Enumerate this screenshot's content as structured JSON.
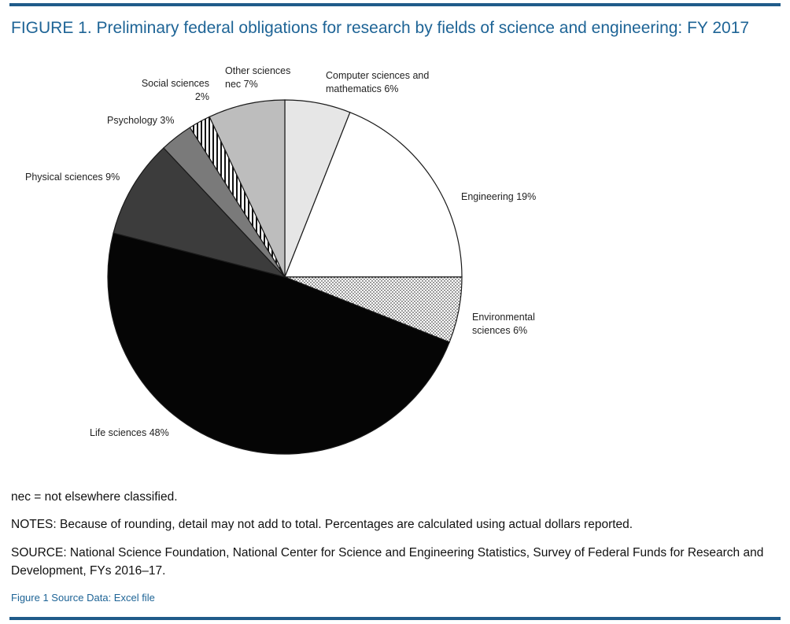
{
  "title": "FIGURE 1. Preliminary federal obligations for research by fields of science and engineering: FY 2017",
  "chart_data": {
    "type": "pie",
    "title": "FIGURE 1. Preliminary federal obligations for research by fields of science and engineering: FY 2017",
    "slices": [
      {
        "label": "Computer sciences and mathematics 6%",
        "label_lines": [
          "Computer sciences and",
          "mathematics 6%"
        ],
        "value": 6,
        "fill": "#e6e6e6"
      },
      {
        "label": "Engineering 19%",
        "label_lines": [
          "Engineering 19%"
        ],
        "value": 19,
        "fill": "#ffffff"
      },
      {
        "label": "Environmental sciences 6%",
        "label_lines": [
          "Environmental",
          "sciences 6%"
        ],
        "value": 6,
        "fill": "pattern-dots"
      },
      {
        "label": "Life sciences 48%",
        "label_lines": [
          "Life sciences 48%"
        ],
        "value": 48,
        "fill": "#050505"
      },
      {
        "label": "Physical sciences 9%",
        "label_lines": [
          "Physical sciences 9%"
        ],
        "value": 9,
        "fill": "#3c3c3c"
      },
      {
        "label": "Psychology 3%",
        "label_lines": [
          "Psychology 3%"
        ],
        "value": 3,
        "fill": "#7a7a7a"
      },
      {
        "label": "Social sciences 2%",
        "label_lines": [
          "Social sciences",
          "2%"
        ],
        "value": 2,
        "fill": "pattern-stripes"
      },
      {
        "label": "Other sciences nec 7%",
        "label_lines": [
          "Other sciences",
          "nec 7%"
        ],
        "value": 7,
        "fill": "#bdbdbd"
      }
    ],
    "direction": "clockwise from top",
    "stroke_color": "#1a1a1a"
  },
  "notes": {
    "nec": "nec = not elsewhere classified.",
    "notes": "NOTES: Because of rounding, detail may not add to total. Percentages are calculated using actual dollars reported.",
    "source": "SOURCE: National Science Foundation, National Center for Science and Engineering Statistics, Survey of Federal Funds for Research and Development, FYs 2016–17."
  },
  "source_link": "Figure 1 Source Data: Excel file",
  "colors": {
    "accent": "#1e6496",
    "rule": "#1f5b8a"
  }
}
